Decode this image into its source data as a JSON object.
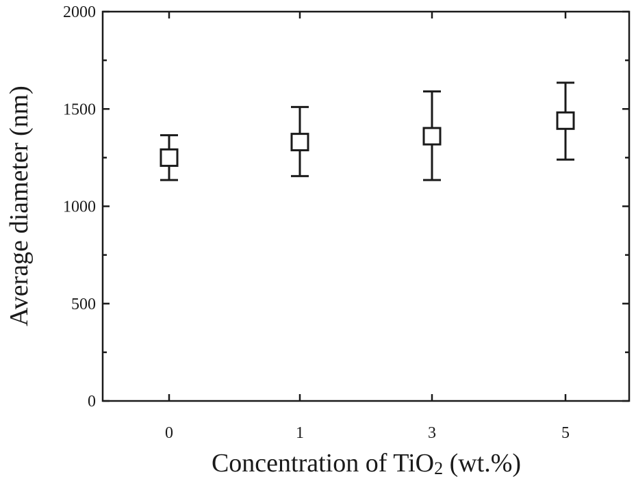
{
  "chart_data": {
    "type": "scatter",
    "xlabel_main": "Concentration of TiO",
    "xlabel_sub": "2",
    "xlabel_tail": " (wt.%)",
    "ylabel": "Average diameter (nm)",
    "ylim": [
      0,
      2000
    ],
    "yticks": [
      "0",
      "500",
      "1000",
      "1500",
      "2000"
    ],
    "categories": [
      "0",
      "1",
      "3",
      "5"
    ],
    "values": [
      1250,
      1330,
      1360,
      1440
    ],
    "errors": [
      {
        "low": 1135,
        "high": 1365
      },
      {
        "low": 1155,
        "high": 1510
      },
      {
        "low": 1135,
        "high": 1590
      },
      {
        "low": 1240,
        "high": 1635
      }
    ],
    "marker": "open-square",
    "grid": false
  }
}
